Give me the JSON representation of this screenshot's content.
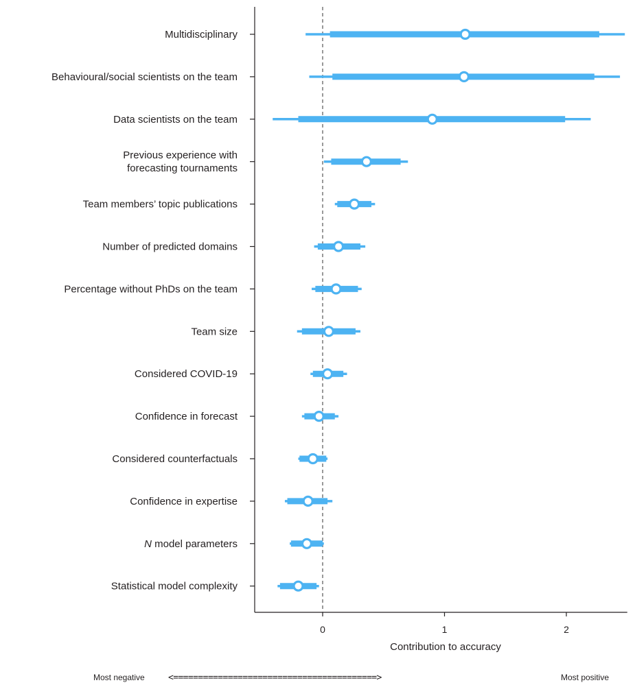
{
  "chart_data": {
    "type": "forest",
    "xlabel": "Contribution to accuracy",
    "xlim": [
      -0.55,
      2.5
    ],
    "xticks": [
      0,
      1,
      2
    ],
    "reference_line": 0,
    "color": "#4db3f2",
    "rows": [
      {
        "label": "Multidisciplinary",
        "estimate": 1.17,
        "inner": [
          0.06,
          2.27
        ],
        "outer": [
          -0.14,
          2.48
        ]
      },
      {
        "label": "Behavioural/social scientists on the team",
        "estimate": 1.16,
        "inner": [
          0.08,
          2.23
        ],
        "outer": [
          -0.11,
          2.44
        ]
      },
      {
        "label": "Data scientists on the team",
        "estimate": 0.9,
        "inner": [
          -0.2,
          1.99
        ],
        "outer": [
          -0.41,
          2.2
        ]
      },
      {
        "label": "Previous experience with\nforecasting tournaments",
        "estimate": 0.36,
        "inner": [
          0.07,
          0.64
        ],
        "outer": [
          0.01,
          0.7
        ]
      },
      {
        "label": "Team members’ topic publications",
        "estimate": 0.26,
        "inner": [
          0.12,
          0.4
        ],
        "outer": [
          0.1,
          0.43
        ]
      },
      {
        "label": "Number of predicted domains",
        "estimate": 0.13,
        "inner": [
          -0.04,
          0.31
        ],
        "outer": [
          -0.07,
          0.35
        ]
      },
      {
        "label": "Percentage without PhDs on the team",
        "estimate": 0.11,
        "inner": [
          -0.06,
          0.29
        ],
        "outer": [
          -0.09,
          0.32
        ]
      },
      {
        "label": "Team size",
        "estimate": 0.05,
        "inner": [
          -0.17,
          0.27
        ],
        "outer": [
          -0.21,
          0.31
        ]
      },
      {
        "label": "Considered COVID-19",
        "estimate": 0.04,
        "inner": [
          -0.08,
          0.17
        ],
        "outer": [
          -0.1,
          0.2
        ]
      },
      {
        "label": "Confidence in forecast",
        "estimate": -0.03,
        "inner": [
          -0.15,
          0.1
        ],
        "outer": [
          -0.17,
          0.13
        ]
      },
      {
        "label": "Considered counterfactuals",
        "estimate": -0.08,
        "inner": [
          -0.19,
          0.03
        ],
        "outer": [
          -0.2,
          0.04
        ]
      },
      {
        "label": "Confidence in expertise",
        "estimate": -0.12,
        "inner": [
          -0.29,
          0.04
        ],
        "outer": [
          -0.31,
          0.08
        ]
      },
      {
        "label": "N model parameters",
        "label_italic_prefix": "N",
        "estimate": -0.13,
        "inner": [
          -0.26,
          0.0
        ],
        "outer": [
          -0.27,
          0.01
        ]
      },
      {
        "label": "Statistical model complexity",
        "estimate": -0.2,
        "inner": [
          -0.35,
          -0.05
        ],
        "outer": [
          -0.37,
          -0.03
        ]
      }
    ]
  },
  "footer": {
    "left": "Most negative",
    "arrow": "<=========================================>",
    "right": "Most positive"
  }
}
